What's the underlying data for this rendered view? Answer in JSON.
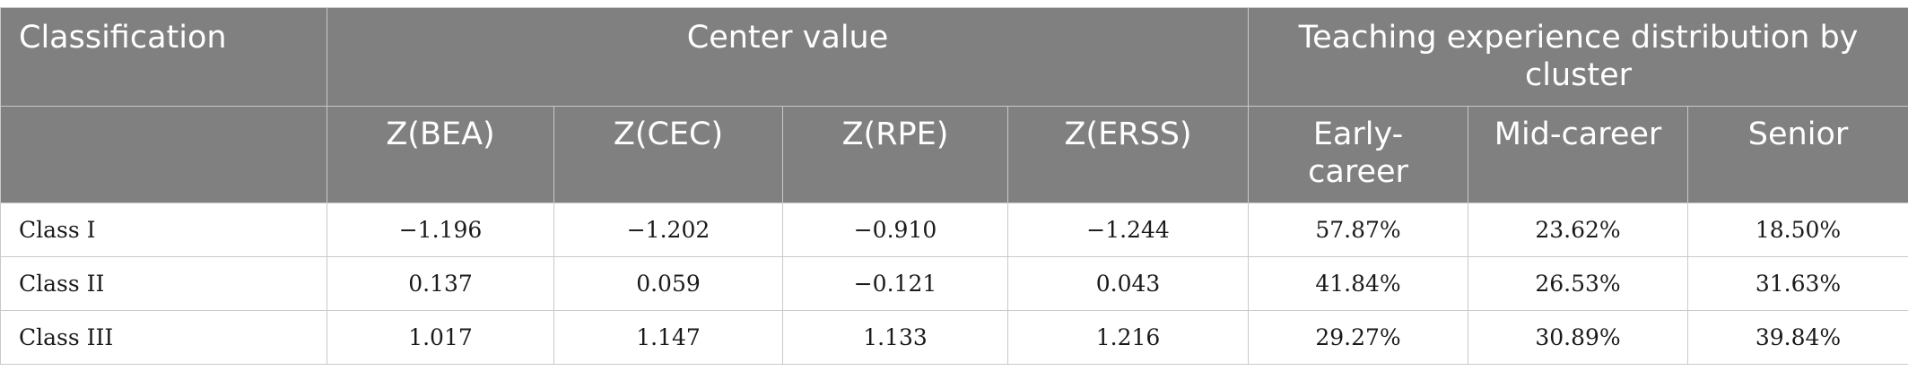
{
  "table": {
    "headers": {
      "classification": "Classification",
      "center_value": "Center value",
      "teaching_distribution": "Teaching experience distribution by cluster",
      "sub": [
        "Z(BEA)",
        "Z(CEC)",
        "Z(RPE)",
        "Z(ERSS)",
        "Early-career",
        "Mid-career",
        "Senior"
      ]
    },
    "rows": [
      {
        "label": "Class I",
        "cells": [
          "−1.196",
          "−1.202",
          "−0.910",
          "−1.244",
          "57.87%",
          "23.62%",
          "18.50%"
        ]
      },
      {
        "label": "Class II",
        "cells": [
          "0.137",
          "0.059",
          "−0.121",
          "0.043",
          "41.84%",
          "26.53%",
          "31.63%"
        ]
      },
      {
        "label": "Class III",
        "cells": [
          "1.017",
          "1.147",
          "1.133",
          "1.216",
          "29.27%",
          "30.89%",
          "39.84%"
        ]
      }
    ]
  }
}
